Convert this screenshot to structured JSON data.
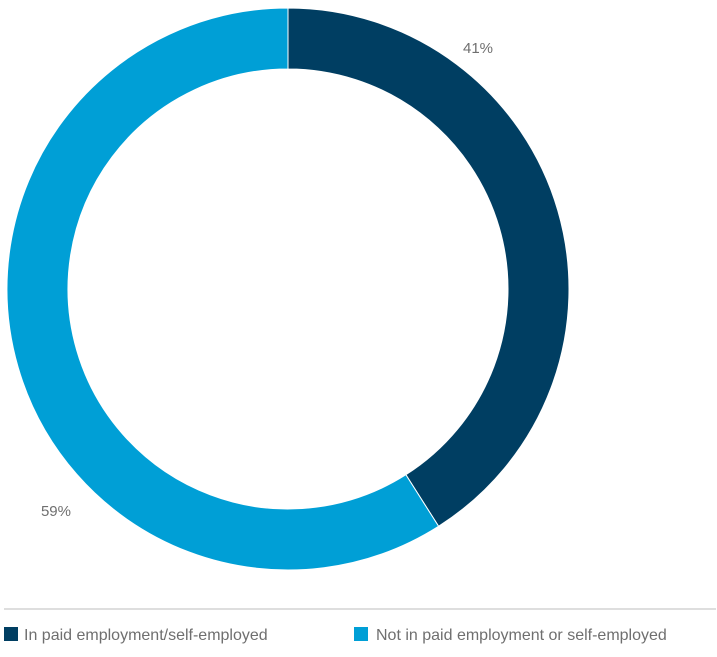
{
  "chart_data": {
    "type": "pie",
    "subtype": "donut",
    "start_angle_deg": 0,
    "direction": "clockwise",
    "legend_position": "bottom",
    "slices": [
      {
        "name": "In paid employment/self-employed",
        "value": 41,
        "label": "41%",
        "color": "#003e62"
      },
      {
        "name": "Not in paid employment or self-employed",
        "value": 59,
        "label": "59%",
        "color": "#009fd6"
      }
    ]
  }
}
